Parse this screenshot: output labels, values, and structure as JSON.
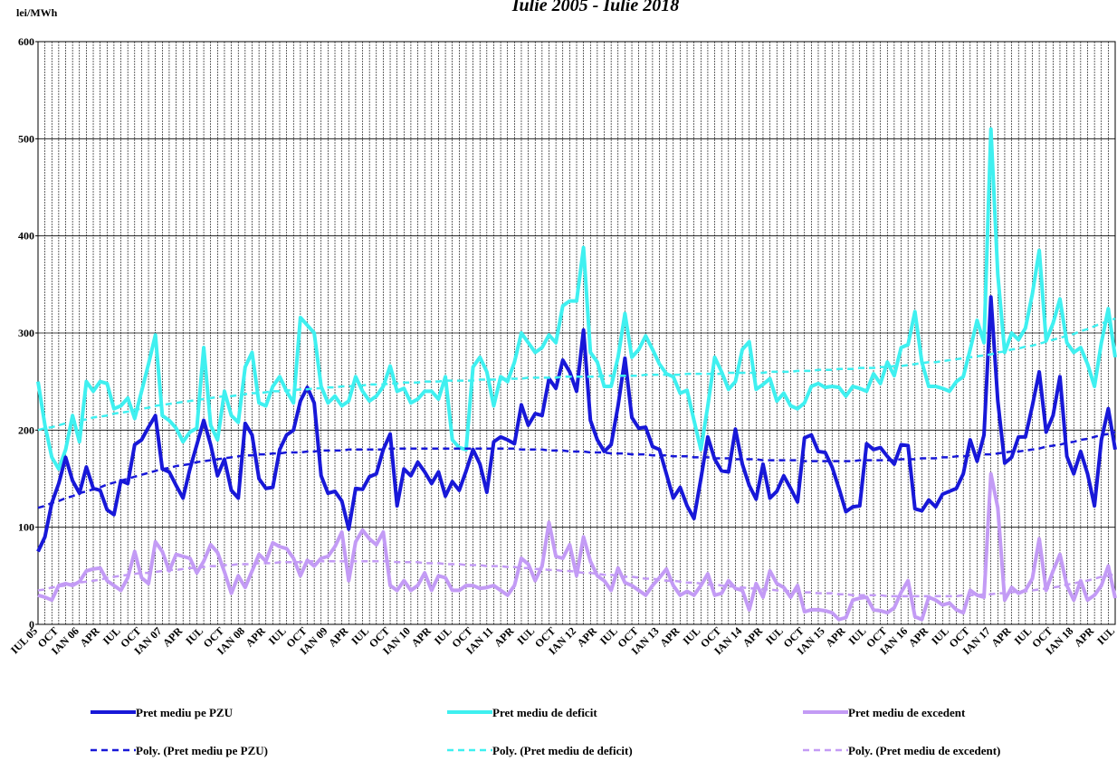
{
  "chart_data": {
    "type": "line",
    "title": "Iulie 2005 - Iulie 2018",
    "y_label": "lei/MWh",
    "categories": [
      "IUL 05",
      null,
      null,
      "OCT",
      null,
      null,
      "IAN 06",
      null,
      null,
      "APR",
      null,
      null,
      "IUL",
      null,
      null,
      "OCT",
      null,
      null,
      "IAN 07",
      null,
      null,
      "APR",
      null,
      null,
      "IUL",
      null,
      null,
      "OCT",
      null,
      null,
      "IAN 08",
      null,
      null,
      "APR",
      null,
      null,
      "IUL",
      null,
      null,
      "OCT",
      null,
      null,
      "IAN 09",
      null,
      null,
      "APR",
      null,
      null,
      "IUL",
      null,
      null,
      "OCT",
      null,
      null,
      "IAN 10",
      null,
      null,
      "APR",
      null,
      null,
      "IUL",
      null,
      null,
      "OCT",
      null,
      null,
      "IAN 11",
      null,
      null,
      "APR",
      null,
      null,
      "IUL",
      null,
      null,
      "OCT",
      null,
      null,
      "IAN 12",
      null,
      null,
      "APR",
      null,
      null,
      "IUL",
      null,
      null,
      "OCT",
      null,
      null,
      "IAN 13",
      null,
      null,
      "APR",
      null,
      null,
      "IUL",
      null,
      null,
      "OCT",
      null,
      null,
      "IAN 14",
      null,
      null,
      "APR",
      null,
      null,
      "IUL",
      null,
      null,
      "OCT",
      null,
      null,
      "IAN 15",
      null,
      null,
      "APR",
      null,
      null,
      "IUL",
      null,
      null,
      "OCT",
      null,
      null,
      "IAN 16",
      null,
      null,
      "APR",
      null,
      null,
      "IUL",
      null,
      null,
      "OCT",
      null,
      null,
      "IAN 17",
      null,
      null,
      "APR",
      null,
      null,
      "IUL",
      null,
      null,
      "OCT",
      null,
      null,
      "IAN 18",
      null,
      null,
      "APR",
      null,
      null,
      "IUL"
    ],
    "series": [
      {
        "name": "Pret mediu pe PZU",
        "color": "#1818d8",
        "style": "solid",
        "values": [
          75,
          90,
          125,
          145,
          172,
          148,
          135,
          162,
          140,
          138,
          118,
          113,
          148,
          145,
          185,
          190,
          203,
          215,
          160,
          157,
          143,
          130,
          160,
          185,
          210,
          185,
          153,
          170,
          138,
          130,
          207,
          195,
          150,
          140,
          141,
          180,
          195,
          200,
          230,
          244,
          228,
          153,
          135,
          137,
          127,
          98,
          140,
          139,
          152,
          155,
          180,
          196,
          122,
          160,
          153,
          167,
          157,
          145,
          157,
          132,
          147,
          138,
          158,
          180,
          165,
          136,
          188,
          193,
          190,
          186,
          226,
          205,
          217,
          215,
          253,
          243,
          272,
          260,
          240,
          303,
          210,
          190,
          178,
          185,
          225,
          274,
          213,
          202,
          203,
          183,
          180,
          155,
          130,
          141,
          122,
          109,
          150,
          193,
          170,
          158,
          157,
          201,
          165,
          143,
          129,
          165,
          130,
          137,
          153,
          140,
          126,
          192,
          195,
          178,
          177,
          162,
          140,
          116,
          121,
          122,
          186,
          180,
          182,
          173,
          165,
          185,
          184,
          119,
          117,
          128,
          121,
          134,
          137,
          140,
          155,
          190,
          168,
          195,
          337,
          230,
          166,
          172,
          193,
          193,
          225,
          260,
          198,
          215,
          255,
          173,
          155,
          178,
          155,
          122,
          190,
          222,
          180
        ]
      },
      {
        "name": "Pret mediu de deficit",
        "color": "#3ff0f0",
        "style": "solid",
        "values": [
          250,
          205,
          172,
          160,
          180,
          215,
          188,
          250,
          240,
          250,
          248,
          222,
          225,
          233,
          212,
          240,
          268,
          298,
          215,
          210,
          202,
          188,
          198,
          202,
          285,
          205,
          190,
          240,
          215,
          208,
          265,
          280,
          228,
          225,
          245,
          255,
          240,
          228,
          316,
          308,
          300,
          245,
          228,
          235,
          225,
          230,
          255,
          240,
          230,
          235,
          245,
          266,
          240,
          243,
          228,
          232,
          240,
          240,
          232,
          255,
          190,
          182,
          180,
          265,
          275,
          260,
          225,
          255,
          250,
          270,
          300,
          290,
          280,
          285,
          298,
          290,
          328,
          333,
          333,
          388,
          280,
          270,
          245,
          245,
          275,
          320,
          275,
          283,
          297,
          283,
          268,
          258,
          255,
          238,
          241,
          210,
          180,
          225,
          275,
          260,
          242,
          250,
          283,
          291,
          242,
          247,
          253,
          230,
          238,
          225,
          222,
          228,
          245,
          248,
          244,
          245,
          244,
          235,
          245,
          243,
          240,
          258,
          248,
          270,
          256,
          285,
          288,
          322,
          270,
          245,
          245,
          243,
          240,
          250,
          255,
          283,
          313,
          290,
          510,
          360,
          280,
          300,
          293,
          305,
          340,
          385,
          292,
          310,
          335,
          290,
          280,
          285,
          268,
          245,
          290,
          325,
          275
        ]
      },
      {
        "name": "Pret mediu de excedent",
        "color": "#c39bf5",
        "style": "solid",
        "values": [
          30,
          28,
          25,
          40,
          42,
          40,
          44,
          55,
          57,
          58,
          45,
          40,
          35,
          48,
          75,
          48,
          42,
          85,
          75,
          55,
          72,
          70,
          68,
          53,
          65,
          82,
          74,
          54,
          32,
          50,
          38,
          55,
          72,
          65,
          84,
          80,
          78,
          68,
          50,
          66,
          60,
          68,
          70,
          80,
          95,
          45,
          85,
          97,
          88,
          82,
          95,
          40,
          35,
          45,
          35,
          40,
          53,
          35,
          50,
          48,
          35,
          35,
          40,
          40,
          37,
          38,
          40,
          35,
          30,
          40,
          68,
          62,
          45,
          60,
          105,
          70,
          68,
          82,
          50,
          90,
          65,
          50,
          45,
          35,
          58,
          43,
          40,
          35,
          30,
          40,
          48,
          57,
          40,
          30,
          34,
          30,
          40,
          52,
          30,
          32,
          45,
          37,
          35,
          15,
          42,
          28,
          55,
          42,
          38,
          28,
          40,
          13,
          15,
          15,
          14,
          12,
          5,
          7,
          25,
          27,
          28,
          15,
          14,
          12,
          17,
          33,
          45,
          8,
          5,
          28,
          25,
          20,
          22,
          15,
          12,
          35,
          30,
          28,
          155,
          120,
          25,
          38,
          32,
          35,
          47,
          88,
          35,
          55,
          72,
          40,
          25,
          45,
          25,
          30,
          40,
          60,
          27
        ]
      },
      {
        "name": "Poly. (Pret mediu pe PZU)",
        "color": "#1818d8",
        "style": "dashed",
        "values": [
          120,
          122,
          125,
          127,
          130,
          132,
          135,
          137,
          139,
          141,
          144,
          146,
          148,
          150,
          152,
          154,
          156,
          158,
          160,
          161,
          163,
          164,
          165,
          167,
          168,
          169,
          170,
          171,
          172,
          173,
          174,
          174,
          175,
          175,
          176,
          176,
          177,
          177,
          177,
          178,
          178,
          179,
          179,
          179,
          179,
          180,
          180,
          180,
          180,
          180,
          180,
          181,
          181,
          181,
          181,
          181,
          181,
          181,
          181,
          181,
          181,
          181,
          181,
          181,
          181,
          181,
          181,
          181,
          181,
          181,
          180,
          180,
          180,
          180,
          179,
          179,
          179,
          178,
          178,
          178,
          177,
          177,
          177,
          176,
          176,
          176,
          175,
          175,
          175,
          174,
          174,
          174,
          173,
          173,
          173,
          172,
          172,
          172,
          171,
          171,
          171,
          170,
          170,
          170,
          170,
          169,
          169,
          169,
          169,
          169,
          169,
          168,
          168,
          168,
          168,
          168,
          168,
          168,
          168,
          169,
          169,
          169,
          169,
          169,
          169,
          170,
          170,
          170,
          171,
          171,
          171,
          172,
          172,
          173,
          173,
          174,
          174,
          175,
          175,
          176,
          177,
          178,
          178,
          179,
          180,
          181,
          183,
          184,
          185,
          187,
          188,
          190,
          191,
          193,
          195,
          196,
          198
        ]
      },
      {
        "name": "Poly. (Pret mediu de deficit)",
        "color": "#3ff0f0",
        "style": "dashed",
        "values": [
          200,
          202,
          203,
          205,
          207,
          208,
          210,
          211,
          213,
          214,
          215,
          217,
          218,
          219,
          221,
          222,
          223,
          225,
          226,
          227,
          228,
          229,
          230,
          231,
          232,
          233,
          234,
          235,
          235,
          236,
          237,
          238,
          238,
          239,
          240,
          240,
          241,
          241,
          242,
          242,
          243,
          243,
          244,
          244,
          245,
          245,
          246,
          246,
          247,
          247,
          247,
          248,
          248,
          249,
          249,
          249,
          250,
          250,
          250,
          251,
          251,
          251,
          251,
          251,
          252,
          252,
          252,
          252,
          253,
          253,
          253,
          254,
          254,
          254,
          254,
          254,
          255,
          255,
          255,
          255,
          255,
          255,
          256,
          256,
          256,
          256,
          256,
          256,
          257,
          257,
          257,
          257,
          257,
          257,
          258,
          258,
          258,
          258,
          258,
          258,
          259,
          259,
          259,
          259,
          259,
          259,
          260,
          260,
          260,
          260,
          261,
          261,
          261,
          262,
          262,
          262,
          263,
          263,
          263,
          264,
          264,
          264,
          265,
          265,
          266,
          266,
          267,
          268,
          269,
          270,
          270,
          271,
          272,
          273,
          274,
          275,
          276,
          277,
          278,
          280,
          281,
          283,
          284,
          286,
          287,
          289,
          291,
          293,
          295,
          297,
          299,
          302,
          304,
          307,
          310,
          312,
          315
        ]
      },
      {
        "name": "Poly. (Pret mediu de excedent)",
        "color": "#c39bf5",
        "style": "dashed",
        "values": [
          35,
          36,
          38,
          39,
          40,
          42,
          43,
          44,
          45,
          46,
          48,
          49,
          50,
          51,
          52,
          53,
          53,
          54,
          55,
          56,
          56,
          57,
          58,
          58,
          59,
          60,
          60,
          61,
          61,
          62,
          62,
          62,
          63,
          63,
          63,
          64,
          64,
          64,
          64,
          65,
          65,
          65,
          65,
          65,
          65,
          65,
          65,
          65,
          65,
          65,
          65,
          65,
          64,
          64,
          64,
          64,
          63,
          63,
          63,
          62,
          62,
          62,
          61,
          61,
          61,
          60,
          60,
          60,
          59,
          59,
          58,
          58,
          57,
          57,
          56,
          56,
          55,
          55,
          54,
          53,
          53,
          52,
          51,
          51,
          50,
          49,
          49,
          48,
          47,
          47,
          46,
          45,
          45,
          44,
          43,
          43,
          42,
          41,
          41,
          40,
          39,
          39,
          38,
          37,
          37,
          36,
          36,
          35,
          35,
          34,
          34,
          33,
          33,
          32,
          32,
          32,
          31,
          31,
          30,
          30,
          30,
          30,
          30,
          29,
          29,
          29,
          29,
          29,
          29,
          29,
          29,
          29,
          29,
          29,
          30,
          30,
          30,
          31,
          31,
          32,
          32,
          33,
          34,
          34,
          35,
          36,
          37,
          38,
          39,
          41,
          42,
          44,
          45,
          47,
          49,
          50,
          52
        ]
      }
    ],
    "ylim": [
      0,
      600
    ],
    "yticks": [
      0,
      100,
      200,
      300,
      400,
      500,
      600
    ],
    "grid": true
  }
}
